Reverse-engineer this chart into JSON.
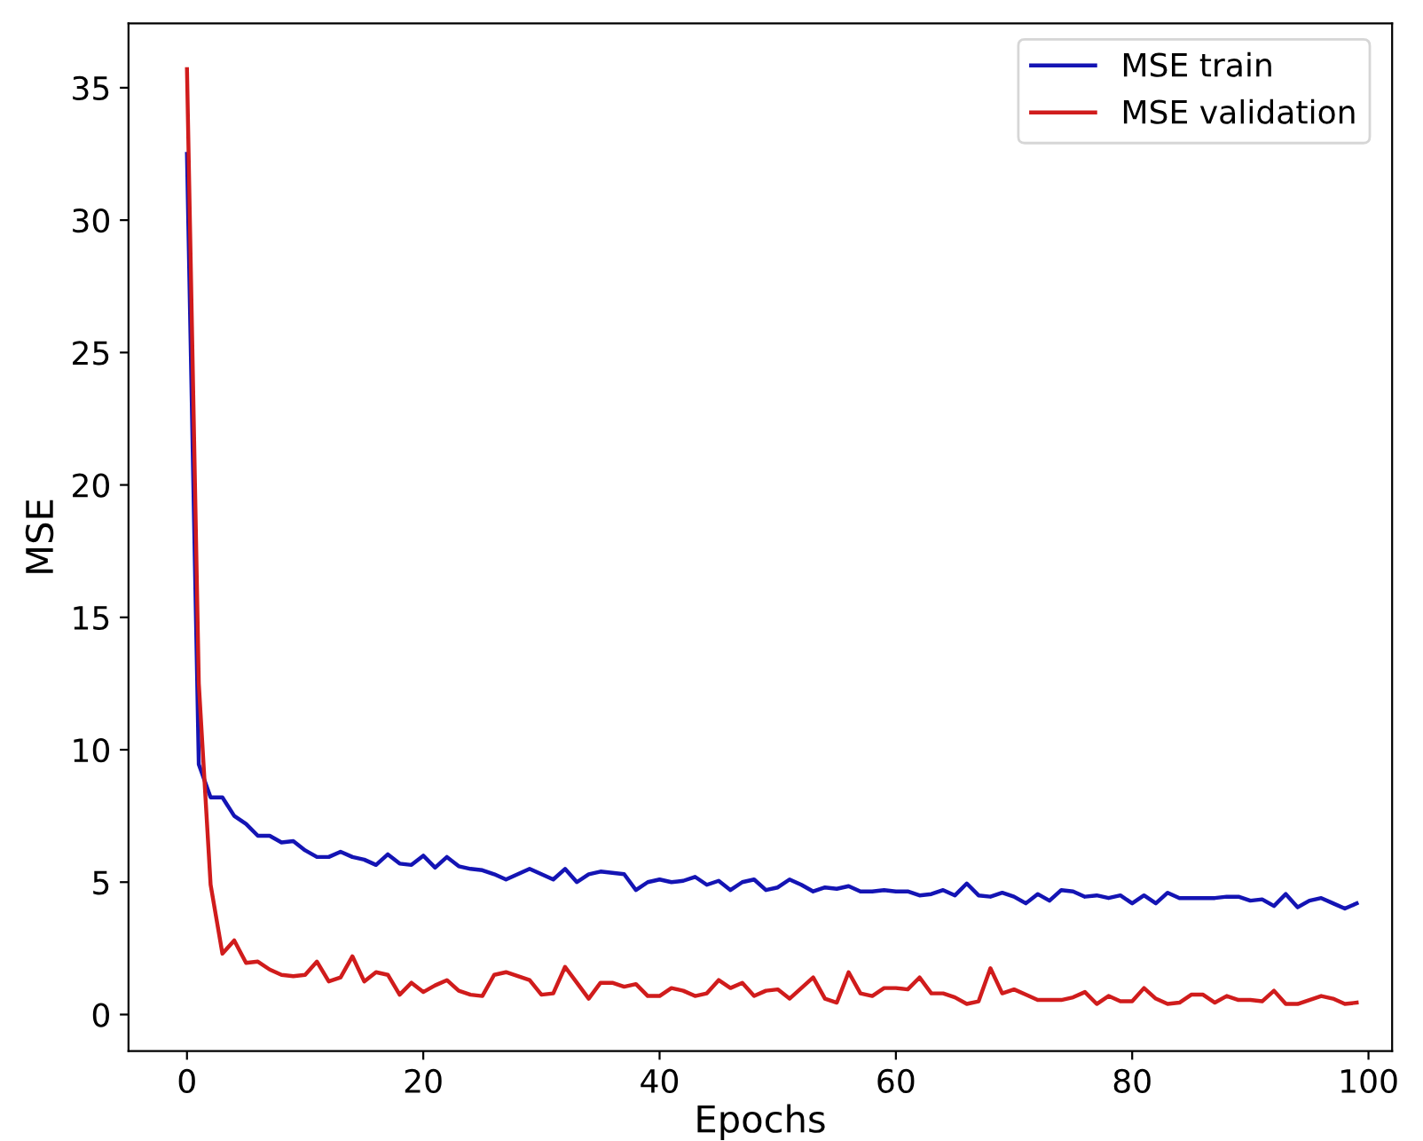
{
  "chart_data": {
    "type": "line",
    "xlabel": "Epochs",
    "ylabel": "MSE",
    "x": [
      0,
      1,
      2,
      3,
      4,
      5,
      6,
      7,
      8,
      9,
      10,
      11,
      12,
      13,
      14,
      15,
      16,
      17,
      18,
      19,
      20,
      21,
      22,
      23,
      24,
      25,
      26,
      27,
      28,
      29,
      30,
      31,
      32,
      33,
      34,
      35,
      36,
      37,
      38,
      39,
      40,
      41,
      42,
      43,
      44,
      45,
      46,
      47,
      48,
      49,
      50,
      51,
      52,
      53,
      54,
      55,
      56,
      57,
      58,
      59,
      60,
      61,
      62,
      63,
      64,
      65,
      66,
      67,
      68,
      69,
      70,
      71,
      72,
      73,
      74,
      75,
      76,
      77,
      78,
      79,
      80,
      81,
      82,
      83,
      84,
      85,
      86,
      87,
      88,
      89,
      90,
      91,
      92,
      93,
      94,
      95,
      96,
      97,
      98,
      99
    ],
    "series": [
      {
        "name": "MSE train",
        "color": "#1414b4",
        "values": [
          32.5,
          9.45,
          8.2,
          8.2,
          7.5,
          7.2,
          6.75,
          6.75,
          6.5,
          6.55,
          6.2,
          5.95,
          5.95,
          6.15,
          5.95,
          5.85,
          5.65,
          6.05,
          5.7,
          5.65,
          6.0,
          5.55,
          5.95,
          5.6,
          5.5,
          5.45,
          5.3,
          5.1,
          5.3,
          5.5,
          5.3,
          5.1,
          5.5,
          5.0,
          5.3,
          5.4,
          5.35,
          5.3,
          4.7,
          5.0,
          5.1,
          5.0,
          5.05,
          5.2,
          4.9,
          5.05,
          4.7,
          5.0,
          5.1,
          4.7,
          4.8,
          5.1,
          4.9,
          4.65,
          4.8,
          4.75,
          4.85,
          4.65,
          4.65,
          4.7,
          4.65,
          4.65,
          4.5,
          4.55,
          4.7,
          4.5,
          4.95,
          4.5,
          4.45,
          4.6,
          4.45,
          4.2,
          4.55,
          4.3,
          4.7,
          4.65,
          4.45,
          4.5,
          4.4,
          4.5,
          4.2,
          4.5,
          4.2,
          4.6,
          4.4,
          4.4,
          4.4,
          4.4,
          4.45,
          4.45,
          4.3,
          4.35,
          4.1,
          4.55,
          4.05,
          4.3,
          4.4,
          4.2,
          4.0,
          4.2
        ]
      },
      {
        "name": "MSE validation",
        "color": "#d01c1c",
        "values": [
          35.7,
          12.5,
          4.9,
          2.3,
          2.8,
          1.95,
          2.0,
          1.7,
          1.5,
          1.45,
          1.5,
          2.0,
          1.25,
          1.4,
          2.2,
          1.25,
          1.6,
          1.5,
          0.75,
          1.2,
          0.85,
          1.1,
          1.3,
          0.9,
          0.75,
          0.7,
          1.5,
          1.6,
          1.45,
          1.3,
          0.75,
          0.8,
          1.8,
          1.2,
          0.6,
          1.2,
          1.2,
          1.05,
          1.15,
          0.7,
          0.7,
          1.0,
          0.9,
          0.7,
          0.8,
          1.3,
          1.0,
          1.2,
          0.7,
          0.9,
          0.95,
          0.6,
          1.0,
          1.4,
          0.6,
          0.45,
          1.6,
          0.8,
          0.7,
          1.0,
          1.0,
          0.95,
          1.4,
          0.8,
          0.8,
          0.65,
          0.4,
          0.5,
          1.75,
          0.8,
          0.95,
          0.75,
          0.55,
          0.55,
          0.55,
          0.65,
          0.85,
          0.4,
          0.7,
          0.5,
          0.5,
          1.0,
          0.6,
          0.4,
          0.45,
          0.75,
          0.75,
          0.45,
          0.7,
          0.55,
          0.55,
          0.5,
          0.9,
          0.4,
          0.4,
          0.55,
          0.7,
          0.6,
          0.4,
          0.45
        ]
      }
    ],
    "xlim": [
      -4.95,
      102
    ],
    "ylim": [
      -1.38,
      37.43
    ],
    "xticks": [
      0,
      20,
      40,
      60,
      80,
      100
    ],
    "yticks": [
      0,
      5,
      10,
      15,
      20,
      25,
      30,
      35
    ],
    "legend": "top right",
    "grid": false,
    "line_style": "solid"
  }
}
